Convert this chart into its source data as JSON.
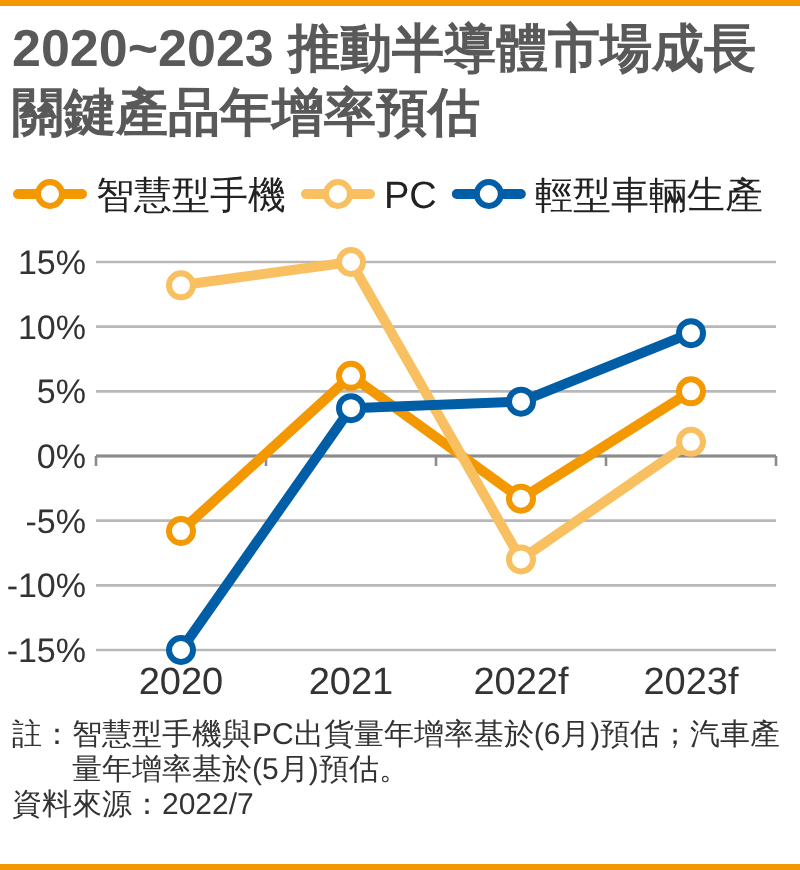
{
  "chart_data": {
    "type": "line",
    "title": "2020~2023 推動半導體市場成長關鍵產品年增率預估",
    "categories": [
      "2020",
      "2021",
      "2022f",
      "2023f"
    ],
    "series": [
      {
        "name": "智慧型手機",
        "color": "#f39800",
        "values": [
          -5.8,
          6.2,
          -3.3,
          5.0
        ]
      },
      {
        "name": "PC",
        "color": "#f8c060",
        "values": [
          13.2,
          15.0,
          -8.0,
          1.1
        ]
      },
      {
        "name": "輕型車輛生產",
        "color": "#005ea6",
        "values": [
          -15.0,
          3.7,
          4.2,
          9.5
        ]
      }
    ],
    "ylim": [
      -15,
      15
    ],
    "yticks": [
      {
        "value": -15,
        "label": "-15%"
      },
      {
        "value": -10,
        "label": "-10%"
      },
      {
        "value": -5,
        "label": "-5%"
      },
      {
        "value": 0,
        "label": "0%"
      },
      {
        "value": 5,
        "label": "5%"
      },
      {
        "value": 10,
        "label": "10%"
      },
      {
        "value": 15,
        "label": "15%"
      }
    ],
    "grid": "y",
    "legend": "top",
    "marker": "circle",
    "line_style": "solid",
    "annotations": [
      "註：智慧型手機與PC出貨量年增率基於(6月)預估；汽車產量年增率基於(5月)預估。",
      "資料來源：2022/7"
    ]
  }
}
